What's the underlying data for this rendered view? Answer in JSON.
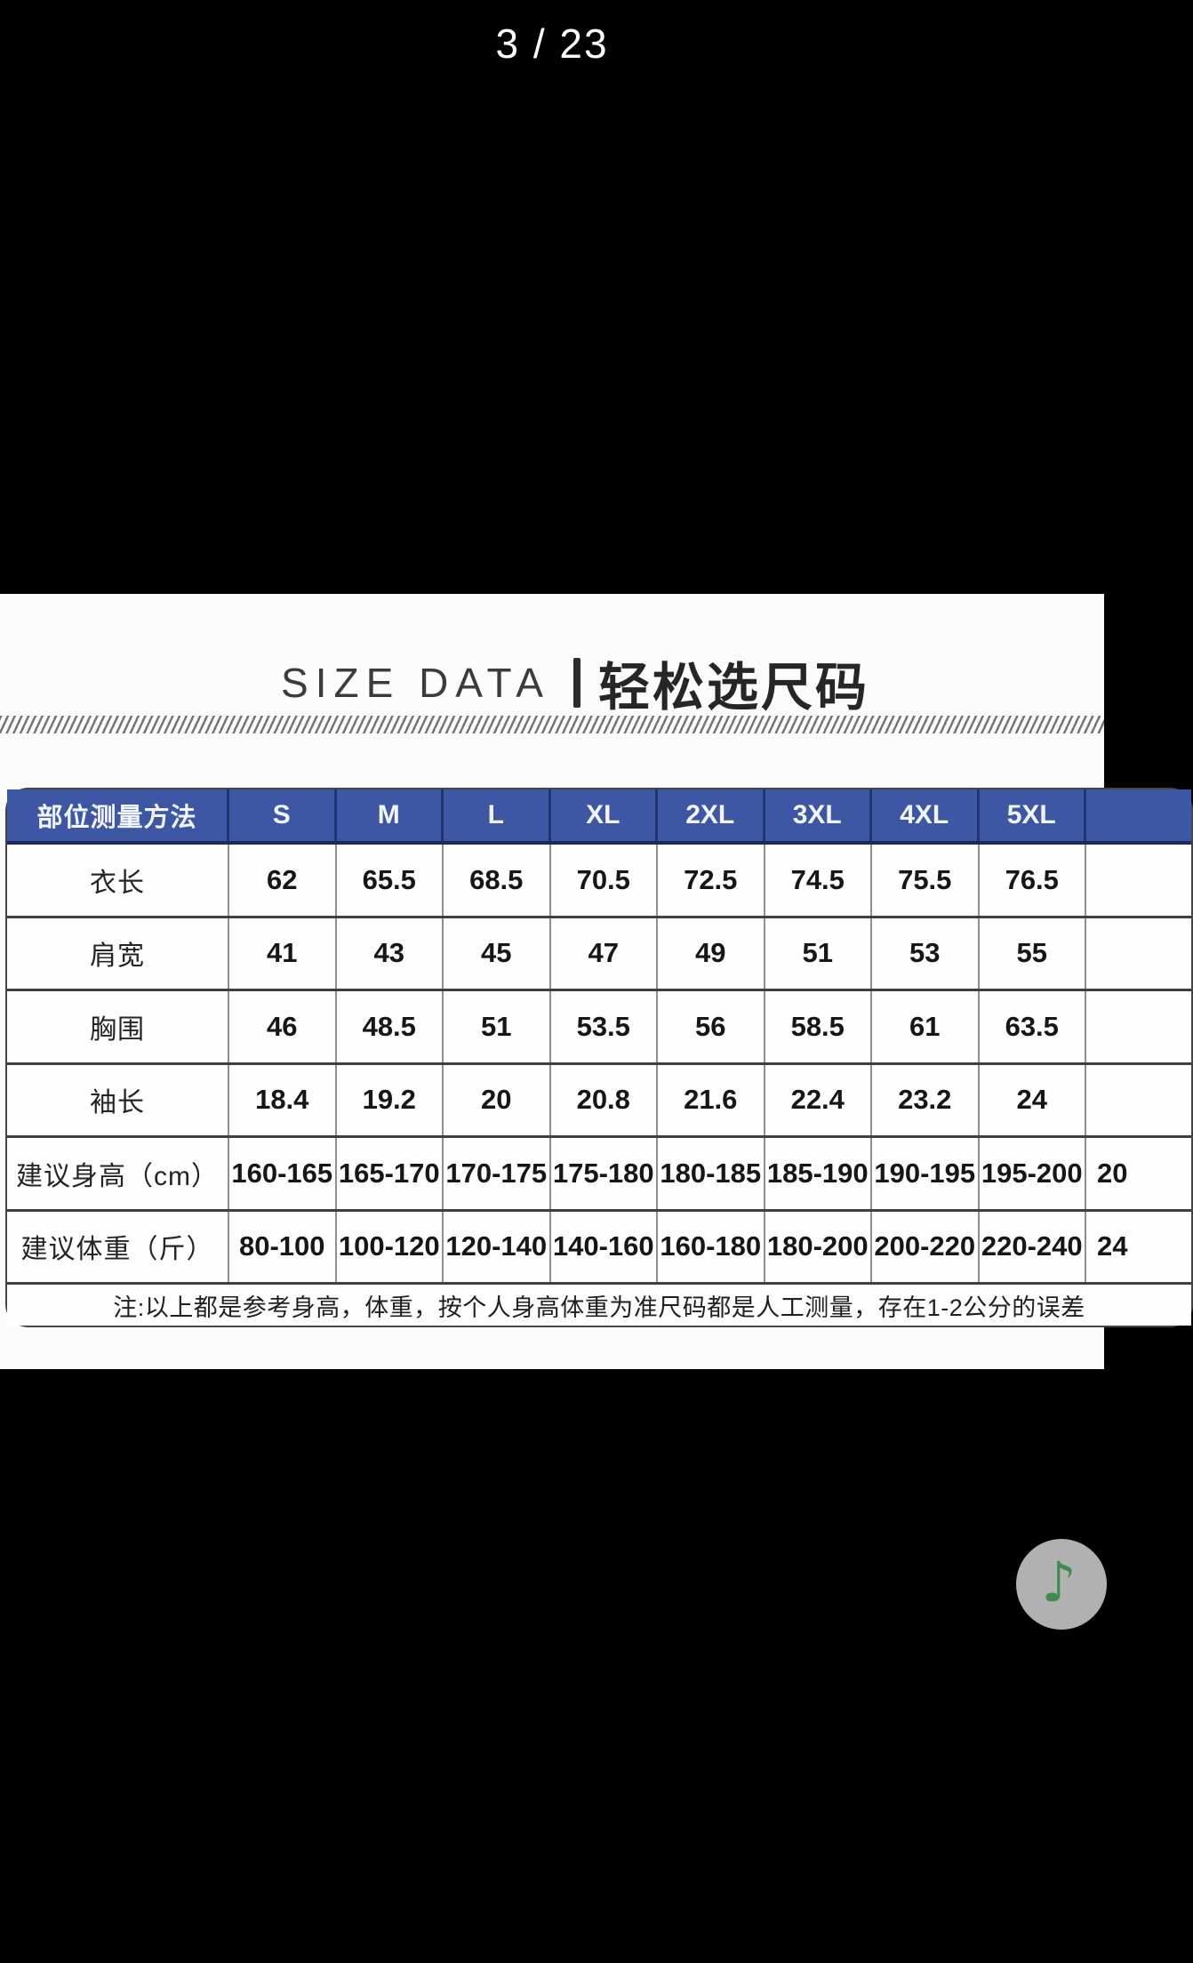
{
  "viewer": {
    "pagination": "3 / 23"
  },
  "image_panel": {
    "title": {
      "en": "SIZE DATA",
      "separator": "|",
      "zh": "轻松选尺码"
    },
    "size_table": {
      "columns": [
        "部位测量方法",
        "S",
        "M",
        "L",
        "XL",
        "2XL",
        "3XL",
        "4XL",
        "5XL",
        ""
      ],
      "rows": [
        {
          "label": "衣长",
          "values": [
            "62",
            "65.5",
            "68.5",
            "70.5",
            "72.5",
            "74.5",
            "75.5",
            "76.5",
            ""
          ]
        },
        {
          "label": "肩宽",
          "values": [
            "41",
            "43",
            "45",
            "47",
            "49",
            "51",
            "53",
            "55",
            ""
          ]
        },
        {
          "label": "胸围",
          "values": [
            "46",
            "48.5",
            "51",
            "53.5",
            "56",
            "58.5",
            "61",
            "63.5",
            ""
          ]
        },
        {
          "label": "袖长",
          "values": [
            "18.4",
            "19.2",
            "20",
            "20.8",
            "21.6",
            "22.4",
            "23.2",
            "24",
            ""
          ]
        },
        {
          "label": "建议身高（cm）",
          "values": [
            "160-165",
            "165-170",
            "170-175",
            "175-180",
            "180-185",
            "185-190",
            "190-195",
            "195-200",
            "20"
          ]
        },
        {
          "label": "建议体重（斤）",
          "values": [
            "80-100",
            "100-120",
            "120-140",
            "140-160",
            "160-180",
            "180-200",
            "200-220",
            "220-240",
            "24"
          ]
        }
      ],
      "note": "注:以上都是参考身高，体重，按个人身高体重为准尺码都是人工测量，存在1-2公分的误差"
    }
  },
  "floating_button": {
    "music_icon": "♪"
  },
  "colors": {
    "header_blue": "#3d57a5",
    "header_border_navy": "#1c2a5c",
    "grid_gray": "#8f8f8f",
    "row_divider": "#3f3f3f",
    "music_green": "#3e8b50",
    "button_gray": "#b1b1b1"
  }
}
